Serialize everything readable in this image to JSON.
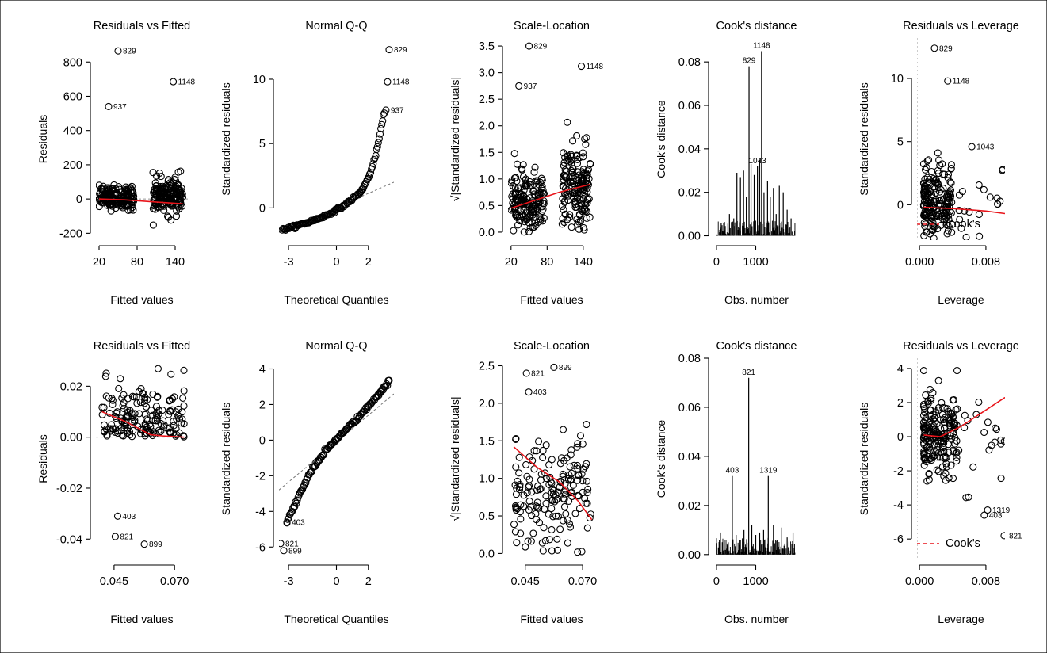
{
  "figure": {
    "panels": [
      {
        "title": "Residuals vs Fitted",
        "xlabel": "Fitted values",
        "ylabel": "Residuals"
      },
      {
        "title": "Normal Q-Q",
        "xlabel": "Theoretical Quantiles",
        "ylabel": "Standardized residuals"
      },
      {
        "title": "Scale-Location",
        "xlabel": "Fitted values",
        "ylabel": "√|Standardized residuals|"
      },
      {
        "title": "Cook's distance",
        "xlabel": "Obs. number",
        "ylabel": "Cook's distance"
      },
      {
        "title": "Residuals vs Leverage",
        "xlabel": "Leverage",
        "ylabel": "Standardized residuals",
        "legend": "Cook's"
      },
      {
        "title": "Residuals vs Fitted",
        "xlabel": "Fitted values",
        "ylabel": "Residuals"
      },
      {
        "title": "Normal Q-Q",
        "xlabel": "Theoretical Quantiles",
        "ylabel": "Standardized residuals"
      },
      {
        "title": "Scale-Location",
        "xlabel": "Fitted values",
        "ylabel": "√|Standardized residuals|"
      },
      {
        "title": "Cook's distance",
        "xlabel": "Obs. number",
        "ylabel": "Cook's distance"
      },
      {
        "title": "Residuals vs Leverage",
        "xlabel": "Leverage",
        "ylabel": "Standardized residuals",
        "legend": "Cook's"
      }
    ]
  },
  "chart_data": [
    {
      "type": "scatter",
      "title": "Residuals vs Fitted",
      "xlabel": "Fitted values",
      "ylabel": "Residuals",
      "xlim": [
        15,
        160
      ],
      "ylim": [
        -240,
        940
      ],
      "xticks": [
        20,
        80,
        140
      ],
      "yticks": [
        -200,
        0,
        200,
        400,
        600,
        800
      ],
      "groups": [
        {
          "x": [
            20,
            75
          ],
          "y_center": 10,
          "y_spread": 60
        },
        {
          "x": [
            105,
            152
          ],
          "y_center": 20,
          "y_spread": 90
        }
      ],
      "labeled_points": [
        {
          "label": "829",
          "x": 50,
          "y": 865
        },
        {
          "label": "1148",
          "x": 137,
          "y": 685
        },
        {
          "label": "937",
          "x": 35,
          "y": 540
        }
      ],
      "smooth": {
        "x": [
          20,
          60,
          100,
          152
        ],
        "y": [
          0,
          -5,
          -15,
          -28
        ]
      },
      "refline": 0,
      "line_color": "#e8141a"
    },
    {
      "type": "scatter",
      "title": "Normal Q-Q",
      "xlabel": "Theoretical Quantiles",
      "ylabel": "Standardized residuals",
      "xlim": [
        -3.6,
        3.6
      ],
      "ylim": [
        -2.5,
        13.2
      ],
      "xticks": [
        -3,
        0,
        2
      ],
      "yticks": [
        0,
        5,
        10
      ],
      "qq_curve": {
        "x": [
          -3.4,
          -2.5,
          -1.5,
          -0.5,
          0.5,
          1.5,
          2.0,
          2.4,
          2.7,
          3.0
        ],
        "y": [
          -1.7,
          -1.4,
          -1.0,
          -0.5,
          0.2,
          1.2,
          2.3,
          3.8,
          5.5,
          7.5
        ]
      },
      "labeled_points": [
        {
          "label": "829",
          "x": 3.3,
          "y": 12.3
        },
        {
          "label": "1148",
          "x": 3.2,
          "y": 9.8
        },
        {
          "label": "937",
          "x": 3.1,
          "y": 7.6
        }
      ],
      "refline": {
        "x": [
          -3.6,
          3.6
        ],
        "y": [
          -1.9,
          2.0
        ]
      }
    },
    {
      "type": "scatter",
      "title": "Scale-Location",
      "xlabel": "Fitted values",
      "ylabel": "√|Standardized residuals|",
      "xlim": [
        15,
        160
      ],
      "ylim": [
        -0.15,
        3.65
      ],
      "xticks": [
        20,
        80,
        140
      ],
      "yticks": [
        0.0,
        0.5,
        1.0,
        1.5,
        2.0,
        2.5,
        3.0,
        3.5
      ],
      "groups": [
        {
          "x": [
            20,
            75
          ],
          "y_center": 0.55,
          "y_spread": 0.55
        },
        {
          "x": [
            105,
            152
          ],
          "y_center": 0.85,
          "y_spread": 0.7
        }
      ],
      "labeled_points": [
        {
          "label": "829",
          "x": 50,
          "y": 3.5
        },
        {
          "label": "1148",
          "x": 137,
          "y": 3.12
        },
        {
          "label": "937",
          "x": 33,
          "y": 2.75
        }
      ],
      "smooth": {
        "x": [
          20,
          60,
          100,
          152
        ],
        "y": [
          0.45,
          0.6,
          0.75,
          0.9
        ]
      },
      "line_color": "#e8141a"
    },
    {
      "type": "bar",
      "title": "Cook's distance",
      "xlabel": "Obs. number",
      "ylabel": "Cook's distance",
      "xlim": [
        -60,
        2100
      ],
      "ylim": [
        -0.002,
        0.091
      ],
      "xticks": [
        0,
        1000
      ],
      "yticks": [
        0.0,
        0.02,
        0.04,
        0.06,
        0.08
      ],
      "n_obs": 2000,
      "spikes": [
        {
          "x": 120,
          "y": 0.006
        },
        {
          "x": 330,
          "y": 0.01
        },
        {
          "x": 440,
          "y": 0.008
        },
        {
          "x": 520,
          "y": 0.029
        },
        {
          "x": 610,
          "y": 0.027
        },
        {
          "x": 690,
          "y": 0.03
        },
        {
          "x": 760,
          "y": 0.018
        },
        {
          "x": 829,
          "y": 0.078
        },
        {
          "x": 880,
          "y": 0.033
        },
        {
          "x": 960,
          "y": 0.028
        },
        {
          "x": 1043,
          "y": 0.032
        },
        {
          "x": 1100,
          "y": 0.035
        },
        {
          "x": 1148,
          "y": 0.085
        },
        {
          "x": 1210,
          "y": 0.02
        },
        {
          "x": 1300,
          "y": 0.025
        },
        {
          "x": 1370,
          "y": 0.018
        },
        {
          "x": 1450,
          "y": 0.022
        },
        {
          "x": 1520,
          "y": 0.01
        },
        {
          "x": 1600,
          "y": 0.023
        },
        {
          "x": 1700,
          "y": 0.02
        },
        {
          "x": 1800,
          "y": 0.012
        },
        {
          "x": 1900,
          "y": 0.008
        }
      ],
      "labeled_points": [
        {
          "label": "829",
          "x": 829,
          "y": 0.078
        },
        {
          "label": "1148",
          "x": 1148,
          "y": 0.085
        },
        {
          "label": "1043",
          "x": 1043,
          "y": 0.032
        }
      ]
    },
    {
      "type": "scatter",
      "title": "Residuals vs Leverage",
      "xlabel": "Leverage",
      "ylabel": "Standardized residuals",
      "xlim": [
        -0.0003,
        0.0103
      ],
      "ylim": [
        -2.8,
        13.2
      ],
      "xticks": [
        0.0,
        0.008
      ],
      "xtick_labels": [
        "0.000",
        "0.008"
      ],
      "yticks": [
        0,
        5,
        10
      ],
      "cloud": {
        "x": [
          0.0005,
          0.004
        ],
        "y_center": 0.3,
        "y_spread": 2.5
      },
      "labeled_points": [
        {
          "label": "829",
          "x": 0.0018,
          "y": 12.4
        },
        {
          "label": "1148",
          "x": 0.0034,
          "y": 9.8
        },
        {
          "label": "1043",
          "x": 0.0063,
          "y": 4.6
        }
      ],
      "smooth": {
        "x": [
          0.0005,
          0.004,
          0.008,
          0.0103
        ],
        "y": [
          -0.2,
          -0.3,
          -0.5,
          -0.7
        ]
      },
      "legend": "Cook's",
      "line_color": "#e8141a"
    },
    {
      "type": "scatter",
      "title": "Residuals vs Fitted",
      "xlabel": "Fitted values",
      "ylabel": "Residuals",
      "xlim": [
        0.0375,
        0.0755
      ],
      "ylim": [
        -0.048,
        0.031
      ],
      "xticks": [
        0.045,
        0.07
      ],
      "xtick_labels": [
        "0.045",
        "0.070"
      ],
      "yticks": [
        -0.04,
        -0.02,
        0.0,
        0.02
      ],
      "ytick_labels": [
        "-0.04",
        "-0.02",
        "0.00",
        "0.02"
      ],
      "groups": [
        {
          "x": [
            0.04,
            0.074
          ],
          "y_center": 0.0,
          "y_spread": 0.02
        }
      ],
      "labeled_points": [
        {
          "label": "403",
          "x": 0.0465,
          "y": -0.031
        },
        {
          "label": "821",
          "x": 0.0455,
          "y": -0.039
        },
        {
          "label": "899",
          "x": 0.0575,
          "y": -0.042
        }
      ],
      "smooth": {
        "x": [
          0.04,
          0.05,
          0.06,
          0.065,
          0.074
        ],
        "y": [
          0.01,
          0.006,
          0.001,
          0.0005,
          0.0
        ]
      },
      "refline": 0,
      "line_color": "#e8141a"
    },
    {
      "type": "scatter",
      "title": "Normal Q-Q",
      "xlabel": "Theoretical Quantiles",
      "ylabel": "Standardized residuals",
      "xlim": [
        -3.6,
        3.6
      ],
      "ylim": [
        -6.7,
        4.6
      ],
      "xticks": [
        -3,
        0,
        2
      ],
      "yticks": [
        -6,
        -4,
        -2,
        0,
        2,
        4
      ],
      "qq_curve": {
        "x": [
          -3.1,
          -2.8,
          -2.3,
          -1.5,
          -0.5,
          0.5,
          1.5,
          2.5,
          3.3
        ],
        "y": [
          -4.6,
          -4.0,
          -3.0,
          -1.6,
          -0.4,
          0.5,
          1.4,
          2.4,
          3.3
        ]
      },
      "labeled_points": [
        {
          "label": "403",
          "x": -3.1,
          "y": -4.6
        },
        {
          "label": "821",
          "x": -3.5,
          "y": -5.8
        },
        {
          "label": "899",
          "x": -3.3,
          "y": -6.2
        }
      ],
      "refline": {
        "x": [
          -3.6,
          3.6
        ],
        "y": [
          -2.8,
          2.6
        ]
      }
    },
    {
      "type": "scatter",
      "title": "Scale-Location",
      "xlabel": "Fitted values",
      "ylabel": "√|Standardized residuals|",
      "xlim": [
        0.0375,
        0.0755
      ],
      "ylim": [
        -0.08,
        2.6
      ],
      "xticks": [
        0.045,
        0.07
      ],
      "xtick_labels": [
        "0.045",
        "0.070"
      ],
      "yticks": [
        0.0,
        0.5,
        1.0,
        1.5,
        2.0,
        2.5
      ],
      "groups": [
        {
          "x": [
            0.04,
            0.074
          ],
          "y_center": 0.8,
          "y_spread": 0.7
        }
      ],
      "labeled_points": [
        {
          "label": "899",
          "x": 0.0575,
          "y": 2.48
        },
        {
          "label": "821",
          "x": 0.0455,
          "y": 2.4
        },
        {
          "label": "403",
          "x": 0.0465,
          "y": 2.15
        }
      ],
      "smooth": {
        "x": [
          0.04,
          0.05,
          0.06,
          0.068,
          0.074
        ],
        "y": [
          1.42,
          1.15,
          0.95,
          0.7,
          0.45
        ]
      },
      "line_color": "#e8141a"
    },
    {
      "type": "bar",
      "title": "Cook's distance",
      "xlabel": "Obs. number",
      "ylabel": "Cook's distance",
      "xlim": [
        -60,
        2100
      ],
      "ylim": [
        -0.002,
        0.08
      ],
      "xticks": [
        0,
        1000
      ],
      "yticks": [
        0.0,
        0.02,
        0.04,
        0.06,
        0.08
      ],
      "n_obs": 2000,
      "spikes": [
        {
          "x": 100,
          "y": 0.009
        },
        {
          "x": 200,
          "y": 0.006
        },
        {
          "x": 300,
          "y": 0.005
        },
        {
          "x": 403,
          "y": 0.032
        },
        {
          "x": 500,
          "y": 0.008
        },
        {
          "x": 600,
          "y": 0.006
        },
        {
          "x": 700,
          "y": 0.01
        },
        {
          "x": 821,
          "y": 0.072
        },
        {
          "x": 899,
          "y": 0.012
        },
        {
          "x": 1000,
          "y": 0.008
        },
        {
          "x": 1100,
          "y": 0.009
        },
        {
          "x": 1200,
          "y": 0.01
        },
        {
          "x": 1319,
          "y": 0.032
        },
        {
          "x": 1450,
          "y": 0.012
        },
        {
          "x": 1550,
          "y": 0.006
        },
        {
          "x": 1650,
          "y": 0.011
        },
        {
          "x": 1800,
          "y": 0.007
        },
        {
          "x": 1950,
          "y": 0.009
        }
      ],
      "labeled_points": [
        {
          "label": "821",
          "x": 821,
          "y": 0.072
        },
        {
          "label": "403",
          "x": 403,
          "y": 0.032
        },
        {
          "label": "1319",
          "x": 1319,
          "y": 0.032
        }
      ]
    },
    {
      "type": "scatter",
      "title": "Residuals vs Leverage",
      "xlabel": "Leverage",
      "ylabel": "Standardized residuals",
      "xlim": [
        -0.0003,
        0.0103
      ],
      "ylim": [
        -7.2,
        4.6
      ],
      "xticks": [
        0.0,
        0.008
      ],
      "xtick_labels": [
        "0.000",
        "0.008"
      ],
      "yticks": [
        -6,
        -4,
        -2,
        0,
        2,
        4
      ],
      "cloud": {
        "x": [
          0.0005,
          0.0045
        ],
        "y_center": 0.3,
        "y_spread": 2.0
      },
      "labeled_points": [
        {
          "label": "1319",
          "x": 0.0082,
          "y": -4.3
        },
        {
          "label": "403",
          "x": 0.0078,
          "y": -4.6
        },
        {
          "label": "821",
          "x": 0.0102,
          "y": -5.8
        }
      ],
      "smooth": {
        "x": [
          0.0005,
          0.0025,
          0.005,
          0.0103
        ],
        "y": [
          0.1,
          0.0,
          0.6,
          2.3
        ]
      },
      "legend": "Cook's",
      "line_color": "#e8141a"
    }
  ]
}
